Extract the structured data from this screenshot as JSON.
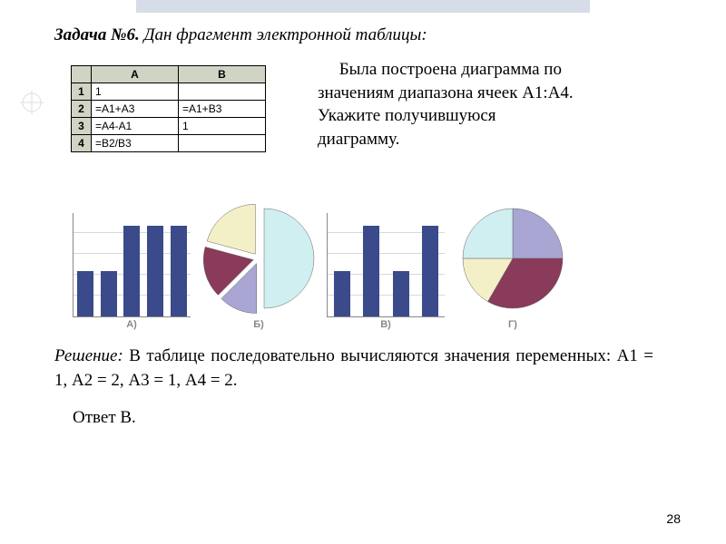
{
  "title_bold": "Задача №6.",
  "title_rest": " Дан фрагмент электронной таблицы:",
  "right_text_lines": [
    "Была построена диаграмма по",
    "значениям диапазона ячеек А1:А4.",
    "Укажите получившуюся",
    "диаграмму."
  ],
  "table": {
    "col_headers": [
      "",
      "А",
      "В"
    ],
    "rows": [
      [
        "1",
        "1",
        ""
      ],
      [
        "2",
        "=А1+А3",
        "=А1+В3"
      ],
      [
        "3",
        "=А4-А1",
        "1"
      ],
      [
        "4",
        "=В2/В3",
        ""
      ]
    ],
    "header_bg": "#d0d4c4"
  },
  "charts": {
    "labels": [
      "А)",
      "Б)",
      "В)",
      "Г)"
    ],
    "bar_color": "#3a4a8a",
    "grid_color": "#d8d8d8",
    "chart_A": {
      "type": "bar",
      "values": [
        50,
        50,
        100,
        100,
        100
      ]
    },
    "chart_V": {
      "type": "bar",
      "values": [
        50,
        100,
        50,
        100
      ]
    },
    "pie_palette": {
      "lilac": "#a9a6d3",
      "maroon": "#8a3a5a",
      "cream": "#f3f0c8",
      "cyan": "#cfeff0"
    },
    "chart_B": {
      "type": "pie",
      "slices": [
        {
          "color": "cyan",
          "angle": 180
        },
        {
          "color": "lilac",
          "angle": 45
        },
        {
          "color": "maroon",
          "angle": 60
        },
        {
          "color": "cream",
          "angle": 75
        }
      ],
      "exploded": false
    },
    "chart_G": {
      "type": "pie",
      "slices": [
        {
          "color": "lilac",
          "angle": 90
        },
        {
          "color": "maroon",
          "angle": 120
        },
        {
          "color": "cream",
          "angle": 60
        },
        {
          "color": "cyan",
          "angle": 90
        }
      ]
    }
  },
  "solution_label": "Решение:",
  "solution_text": " В таблице последовательно вычисляются значения переменных: А1 = 1, А2 = 2, А3 = 1, А4 = 2.",
  "answer": "Ответ В.",
  "page_number": "28"
}
